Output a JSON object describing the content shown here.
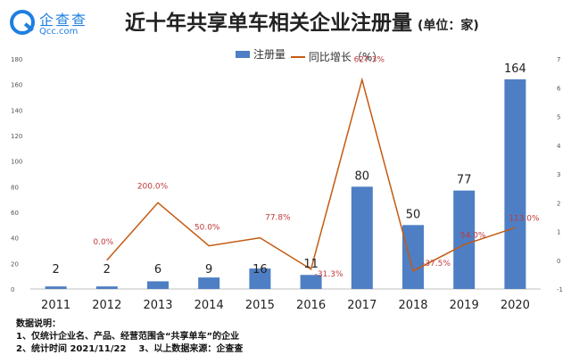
{
  "brand": {
    "name": "企查查",
    "domain": "Qcc.com",
    "color": "#1f7fe0"
  },
  "title": "近十年共享单车相关企业注册量",
  "unit_label": "(单位：家)",
  "legend": {
    "bar_label": "注册量",
    "line_label": "同比增长（%）"
  },
  "notes": {
    "heading": "数据说明：",
    "line1": "1、仅统计企业名、产品、经营范围含“共享单车”的企业",
    "line2a": "2、统计时间 2021/11/22",
    "line2b": "3、以上数据来源：企查查"
  },
  "chart_data": {
    "type": "bar",
    "title": "近十年共享单车相关企业注册量",
    "categories": [
      "2011",
      "2012",
      "2013",
      "2014",
      "2015",
      "2016",
      "2017",
      "2018",
      "2019",
      "2020"
    ],
    "series": [
      {
        "name": "注册量",
        "type": "bar",
        "axis": "left",
        "color": "#4e7fc4",
        "values": [
          2,
          2,
          6,
          9,
          16,
          11,
          80,
          50,
          77,
          164
        ],
        "labels": [
          "2",
          "2",
          "6",
          "9",
          "16",
          "11",
          "80",
          "50",
          "77",
          "164"
        ]
      },
      {
        "name": "同比增长（%）",
        "type": "line",
        "axis": "right",
        "color": "#c55a11",
        "label_color": "#c0393b",
        "values": [
          null,
          0.0,
          2.0,
          0.5,
          0.778,
          -0.313,
          6.273,
          -0.375,
          0.54,
          1.13
        ],
        "labels": [
          null,
          "0.0%",
          "200.0%",
          "50.0%",
          "77.8%",
          "-31.3%",
          "627.3%",
          "-37.5%",
          "54.0%",
          "113.0%"
        ]
      }
    ],
    "y_left": {
      "min": 0,
      "max": 180,
      "ticks": [
        0,
        20,
        40,
        60,
        80,
        100,
        120,
        140,
        160,
        180
      ]
    },
    "y_right": {
      "min": -1,
      "max": 7,
      "ticks": [
        -1,
        0,
        1,
        2,
        3,
        4,
        5,
        6,
        7
      ]
    },
    "grid": false,
    "legend_position": "top"
  }
}
